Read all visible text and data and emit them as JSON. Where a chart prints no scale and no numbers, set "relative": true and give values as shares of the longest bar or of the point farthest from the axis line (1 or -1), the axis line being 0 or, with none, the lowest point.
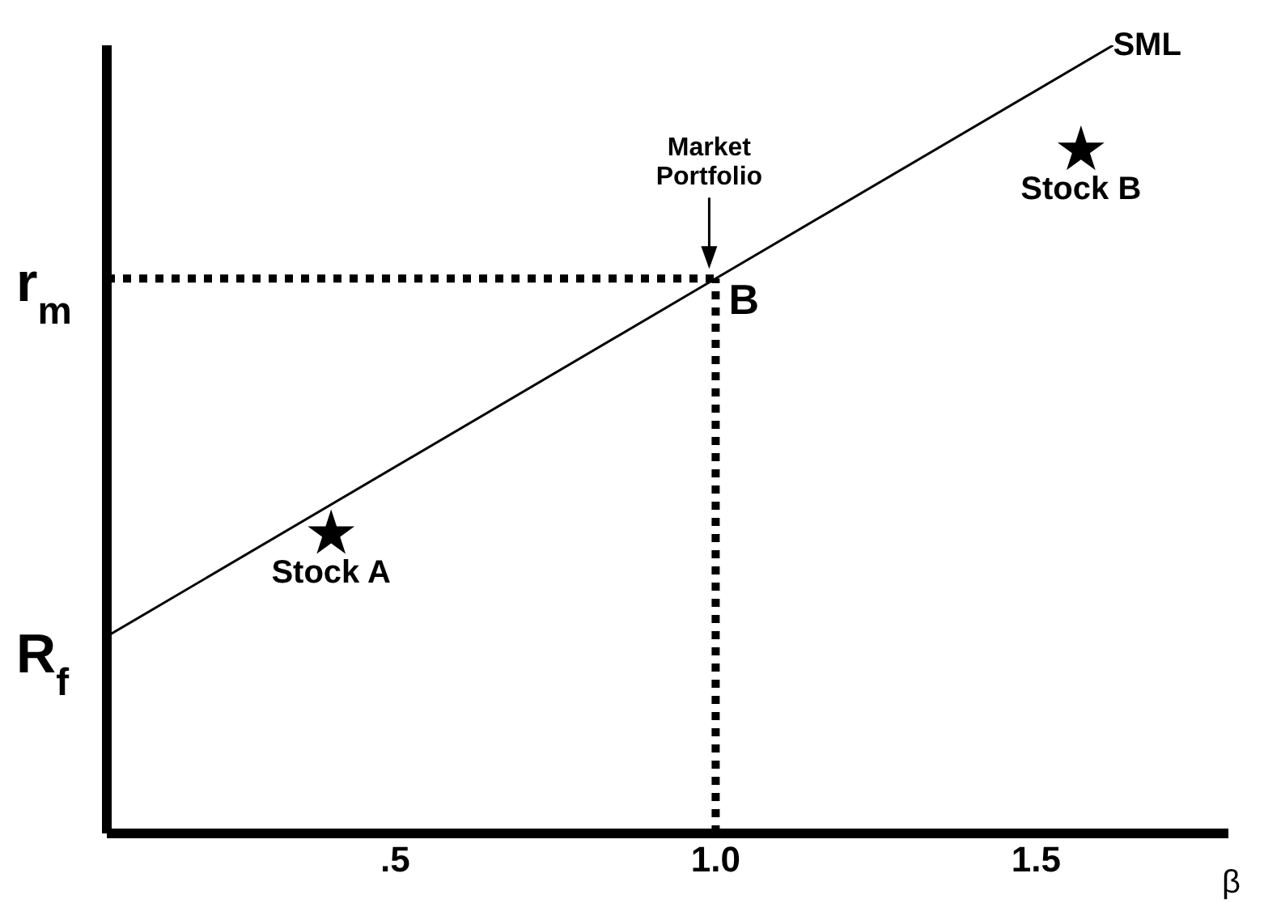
{
  "chart_data": {
    "type": "line",
    "relative": true,
    "xlabel": "β",
    "xlim": [
      0.05,
      1.8
    ],
    "xticks": [
      {
        "value": 0.5,
        "label": ".5"
      },
      {
        "value": 1,
        "label": "1.0"
      },
      {
        "value": 1.5,
        "label": "1.5"
      }
    ],
    "series": [
      {
        "name": "SML",
        "color": "#000000",
        "x": [
          0.05,
          1.0,
          1.62
        ],
        "values": [
          0.25,
          0.704,
          1
        ]
      },
      {
        "name": "Stock A",
        "type": "scatter",
        "color": "#000000",
        "x": [
          0.4
        ],
        "values": [
          0.38
        ],
        "marker": "star"
      },
      {
        "name": "Stock B",
        "type": "scatter",
        "color": "#000000",
        "x": [
          1.57
        ],
        "values": [
          0.867
        ],
        "marker": "star"
      }
    ],
    "ref_lines": [
      {
        "axis": "y",
        "value": 0.704,
        "label": "r$_{m}$",
        "line_style": "dotted",
        "color": "#000000"
      },
      {
        "axis": "x",
        "value": 1.0,
        "line_style": "dotted",
        "color": "#000000"
      }
    ],
    "annotations": [
      {
        "text": "B",
        "x": 1.0,
        "y": 0.704
      },
      "Market Portfolio",
      {
        "text": "R$_{f}$",
        "x": 0.05,
        "y": 0.25
      }
    ],
    "grid": false,
    "legend": false
  }
}
